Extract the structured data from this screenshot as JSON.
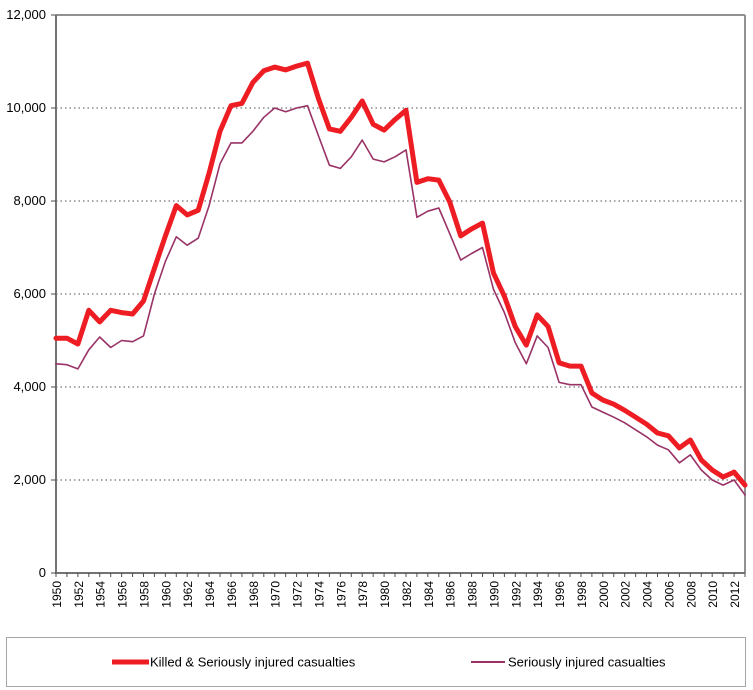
{
  "chart_data": {
    "type": "line",
    "title": "",
    "xlabel": "",
    "ylabel": "",
    "grid": true,
    "legend_position": "bottom",
    "ylim": [
      0,
      12000
    ],
    "ytick_step": 2000,
    "y_tick_labels": [
      "0",
      "2,000",
      "4,000",
      "6,000",
      "8,000",
      "10,000",
      "12,000"
    ],
    "x_tick_labels": [
      "1950",
      "1952",
      "1954",
      "1956",
      "1958",
      "1960",
      "1962",
      "1964",
      "1966",
      "1968",
      "1970",
      "1972",
      "1974",
      "1976",
      "1978",
      "1980",
      "1982",
      "1984",
      "1986",
      "1988",
      "1990",
      "1992",
      "1994",
      "1996",
      "1998",
      "2000",
      "2002",
      "2004",
      "2006",
      "2008",
      "2010",
      "2012"
    ],
    "x": [
      1950,
      1951,
      1952,
      1953,
      1954,
      1955,
      1956,
      1957,
      1958,
      1959,
      1960,
      1961,
      1962,
      1963,
      1964,
      1965,
      1966,
      1967,
      1968,
      1969,
      1970,
      1971,
      1972,
      1973,
      1974,
      1975,
      1976,
      1977,
      1978,
      1979,
      1980,
      1981,
      1982,
      1983,
      1984,
      1985,
      1986,
      1987,
      1988,
      1989,
      1990,
      1991,
      1992,
      1993,
      1994,
      1995,
      1996,
      1997,
      1998,
      1999,
      2000,
      2001,
      2002,
      2003,
      2004,
      2005,
      2006,
      2007,
      2008,
      2009,
      2010,
      2011,
      2012,
      2013
    ],
    "series": [
      {
        "name": "Killed & Seriously injured casualties",
        "color": "#ee1c23",
        "stroke_width": 5,
        "values": [
          5050,
          5050,
          4925,
          5650,
          5400,
          5650,
          5600,
          5570,
          5850,
          6550,
          7250,
          7900,
          7700,
          7800,
          8600,
          9500,
          10050,
          10100,
          10550,
          10800,
          10880,
          10820,
          10900,
          10965,
          10200,
          9550,
          9500,
          9800,
          10150,
          9650,
          9525,
          9750,
          9950,
          8400,
          8480,
          8450,
          7980,
          7250,
          7400,
          7525,
          6450,
          5950,
          5300,
          4900,
          5550,
          5300,
          4520,
          4450,
          4450,
          3870,
          3720,
          3630,
          3500,
          3350,
          3200,
          3010,
          2950,
          2690,
          2860,
          2430,
          2215,
          2065,
          2170,
          1890
        ]
      },
      {
        "name": "Seriously injured casualties",
        "color": "#993366",
        "stroke_width": 1.6,
        "values": [
          4500,
          4480,
          4390,
          4800,
          5075,
          4850,
          5000,
          4975,
          5100,
          6000,
          6700,
          7230,
          7050,
          7200,
          7900,
          8800,
          9250,
          9250,
          9500,
          9800,
          10000,
          9920,
          10000,
          10050,
          9400,
          8770,
          8700,
          8950,
          9310,
          8900,
          8840,
          8950,
          9100,
          7650,
          7780,
          7850,
          7300,
          6730,
          6870,
          7000,
          6100,
          5600,
          4950,
          4500,
          5100,
          4850,
          4100,
          4050,
          4050,
          3570,
          3460,
          3350,
          3230,
          3080,
          2930,
          2750,
          2650,
          2370,
          2540,
          2215,
          2000,
          1890,
          2000,
          1680
        ]
      }
    ],
    "colors": {
      "plot_border": "#919191",
      "axis": "#737373",
      "gridline": "#4d4d4d",
      "tick": "#4d4d4d"
    }
  },
  "legend": {
    "items": [
      {
        "label": "Killed & Seriously injured casualties"
      },
      {
        "label": "Seriously injured casualties"
      }
    ]
  }
}
